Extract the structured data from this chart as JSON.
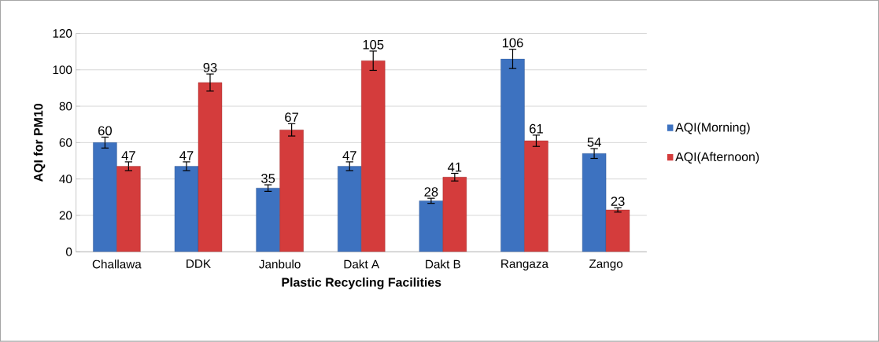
{
  "chart_data": {
    "type": "bar",
    "xlabel": "Plastic Recycling Facilities",
    "ylabel": "AQI for PM10",
    "categories": [
      "Challawa",
      "DDK",
      "Janbulo",
      "Dakt A",
      "Dakt B",
      "Rangaza",
      "Zango"
    ],
    "series": [
      {
        "name": "AQI(Morning)",
        "color": "#3d72c0",
        "values": [
          60,
          47,
          35,
          47,
          28,
          106,
          54
        ],
        "errors": [
          3,
          2.4,
          1.8,
          2.4,
          1.4,
          5.3,
          2.7
        ]
      },
      {
        "name": "AQI(Afternoon)",
        "color": "#d43c3c",
        "values": [
          47,
          93,
          67,
          105,
          41,
          61,
          23
        ],
        "errors": [
          2.4,
          4.7,
          3.4,
          5.3,
          2.1,
          3.1,
          1.2
        ]
      }
    ],
    "ylim": [
      0,
      120
    ],
    "yticks": [
      0,
      20,
      40,
      60,
      80,
      100,
      120
    ],
    "grid": "y",
    "legend": "right",
    "data_labels": true
  }
}
